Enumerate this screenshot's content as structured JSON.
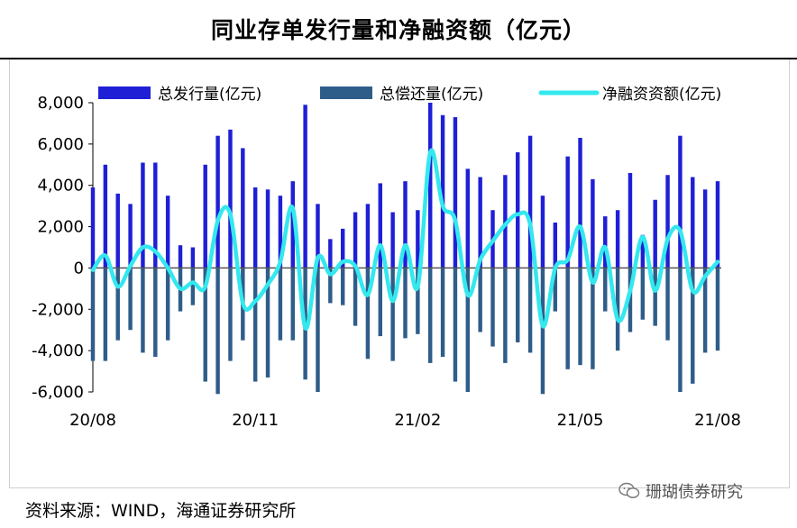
{
  "header": {
    "title": "同业存单发行量和净融资额（亿元）"
  },
  "footer": {
    "source": "资料来源：WIND，海通证券研究所"
  },
  "watermark": {
    "text": "珊瑚债券研究"
  },
  "colors": {
    "issuance": "#1f1fd6",
    "repayment": "#2f5d8a",
    "net": "#33e8ee"
  },
  "chart_data": {
    "type": "bar",
    "title": "同业存单发行量和净融资额（亿元）",
    "xlabel": "",
    "ylabel": "",
    "ylim": [
      -6000,
      8000
    ],
    "yticks": [
      8000,
      6000,
      4000,
      2000,
      0,
      -2000,
      -4000,
      -6000
    ],
    "ytick_labels": [
      "8,000",
      "6,000",
      "4,000",
      "2,000",
      "0",
      "-2,000",
      "-4,000",
      "-6,000"
    ],
    "xtick_labels": [
      "20/08",
      "20/11",
      "21/02",
      "21/05",
      "21/08"
    ],
    "xtick_index": [
      0,
      13,
      26,
      39,
      52
    ],
    "legend": [
      "总发行量(亿元)",
      "总偿还量(亿元)",
      "净融资资额(亿元)"
    ],
    "legend_position": "top",
    "series": [
      {
        "name": "总发行量(亿元)",
        "kind": "bar",
        "values": [
          3900,
          5000,
          3600,
          3100,
          5100,
          5100,
          3500,
          1100,
          1000,
          5000,
          6400,
          6700,
          5800,
          3900,
          3800,
          3500,
          4200,
          7900,
          3100,
          1400,
          1900,
          2700,
          3100,
          4100,
          2700,
          4200,
          2800,
          8000,
          7400,
          7300,
          4800,
          4400,
          2800,
          4500,
          5600,
          6400,
          3500,
          2200,
          5400,
          6300,
          4300,
          2500,
          2800,
          4600,
          1600,
          3300,
          4500,
          6400,
          4400,
          3800,
          4200
        ]
      },
      {
        "name": "总偿还量(亿元)",
        "kind": "bar",
        "values": [
          -4500,
          -4500,
          -3500,
          -3000,
          -4100,
          -4300,
          -3500,
          -2100,
          -1800,
          -5500,
          -6100,
          -4500,
          -3500,
          -5500,
          -5300,
          -3500,
          -3500,
          -5400,
          -6000,
          -1700,
          -1800,
          -2800,
          -4400,
          -3300,
          -4500,
          -3400,
          -3200,
          -4600,
          -4300,
          -5500,
          -6000,
          -3100,
          -3800,
          -4600,
          -3600,
          -4100,
          -6100,
          -2100,
          -4900,
          -4700,
          -4900,
          -2100,
          -4000,
          -3100,
          -2500,
          -2800,
          -3500,
          -6000,
          -5600,
          -4100,
          -4000
        ]
      },
      {
        "name": "净融资资额(亿元)",
        "kind": "line",
        "values": [
          -100,
          600,
          -900,
          100,
          1000,
          800,
          0,
          -1000,
          -700,
          -900,
          2300,
          2600,
          -1700,
          -1600,
          -800,
          300,
          2900,
          -2900,
          500,
          -300,
          300,
          100,
          -1300,
          1100,
          -1600,
          1100,
          -900,
          5600,
          3000,
          2300,
          -1300,
          400,
          1300,
          2100,
          2600,
          2100,
          -2800,
          0,
          400,
          2000,
          -700,
          1000,
          -2500,
          -1100,
          1500,
          -1100,
          1400,
          1800,
          -1100,
          -400,
          300
        ]
      }
    ]
  }
}
